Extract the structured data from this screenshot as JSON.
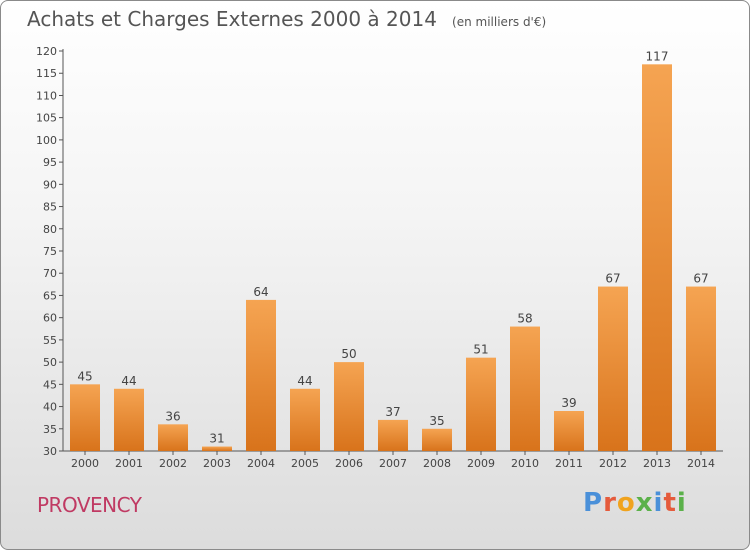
{
  "title": "Achats et Charges Externes 2000 à 2014",
  "unit_note": "(en milliers d'€)",
  "commune": "PROVENCY",
  "logo_text": "Proxiti",
  "colors": {
    "bar_light": "#f5a452",
    "bar_dark": "#d8731b",
    "title": "#555555",
    "commune": "#c03a63",
    "logo": [
      "#4a90d9",
      "#e55b3c",
      "#f0a31e",
      "#5bb14a",
      "#4a90d9",
      "#e55b3c",
      "#5bb14a"
    ]
  },
  "chart_data": {
    "type": "bar",
    "categories": [
      "2000",
      "2001",
      "2002",
      "2003",
      "2004",
      "2005",
      "2006",
      "2007",
      "2008",
      "2009",
      "2010",
      "2011",
      "2012",
      "2013",
      "2014"
    ],
    "values": [
      45,
      44,
      36,
      31,
      64,
      44,
      50,
      37,
      35,
      51,
      58,
      39,
      67,
      117,
      67
    ],
    "value_labels": [
      "45",
      "44",
      "36",
      "31",
      "64",
      "44",
      "50",
      "37",
      "35",
      "51",
      "58",
      "39",
      "67",
      "117",
      "67"
    ],
    "ylim": [
      30,
      120
    ],
    "yticks": [
      "30",
      "35",
      "40",
      "45",
      "50",
      "55",
      "60",
      "65",
      "70",
      "75",
      "80",
      "85",
      "90",
      "95",
      "100",
      "105",
      "110",
      "115",
      "120"
    ],
    "ytick_values": [
      30,
      35,
      40,
      45,
      50,
      55,
      60,
      65,
      70,
      75,
      80,
      85,
      90,
      95,
      100,
      105,
      110,
      115,
      120
    ],
    "grid": false
  }
}
